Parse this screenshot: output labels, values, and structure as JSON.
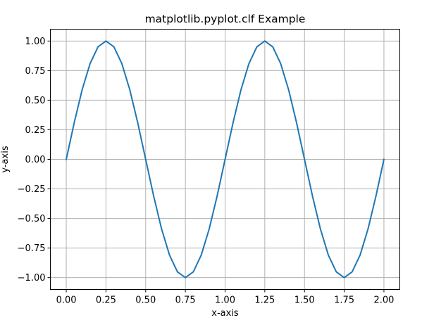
{
  "chart_data": {
    "type": "line",
    "title": "matplotlib.pyplot.clf Example",
    "xlabel": "x-axis",
    "ylabel": "y-axis",
    "xlim": [
      -0.1,
      2.1
    ],
    "ylim": [
      -1.1,
      1.1
    ],
    "x_ticks": [
      0.0,
      0.25,
      0.5,
      0.75,
      1.0,
      1.25,
      1.5,
      1.75,
      2.0
    ],
    "x_tick_labels": [
      "0.00",
      "0.25",
      "0.50",
      "0.75",
      "1.00",
      "1.25",
      "1.50",
      "1.75",
      "2.00"
    ],
    "y_ticks": [
      1.0,
      0.75,
      0.5,
      0.25,
      0.0,
      -0.25,
      -0.5,
      -0.75,
      -1.0
    ],
    "y_tick_labels": [
      "1.00",
      "0.75",
      "0.50",
      "0.25",
      "0.00",
      "−0.25",
      "−0.50",
      "−0.75",
      "−1.00"
    ],
    "grid": true,
    "series": [
      {
        "color": "#1f77b4",
        "x": [
          0.0,
          0.05,
          0.1,
          0.15,
          0.2,
          0.25,
          0.3,
          0.35,
          0.4,
          0.45,
          0.5,
          0.55,
          0.6,
          0.65,
          0.7,
          0.75,
          0.8,
          0.85,
          0.9,
          0.95,
          1.0,
          1.05,
          1.1,
          1.15,
          1.2,
          1.25,
          1.3,
          1.35,
          1.4,
          1.45,
          1.5,
          1.55,
          1.6,
          1.65,
          1.7,
          1.75,
          1.8,
          1.85,
          1.9,
          1.95,
          2.0
        ],
        "y": [
          0.0,
          0.309,
          0.588,
          0.809,
          0.951,
          1.0,
          0.951,
          0.809,
          0.588,
          0.309,
          0.0,
          -0.309,
          -0.588,
          -0.809,
          -0.951,
          -1.0,
          -0.951,
          -0.809,
          -0.588,
          -0.309,
          0.0,
          0.309,
          0.588,
          0.809,
          0.951,
          1.0,
          0.951,
          0.809,
          0.588,
          0.309,
          0.0,
          -0.309,
          -0.588,
          -0.809,
          -0.951,
          -1.0,
          -0.951,
          -0.809,
          -0.588,
          -0.309,
          0.0
        ]
      }
    ]
  }
}
